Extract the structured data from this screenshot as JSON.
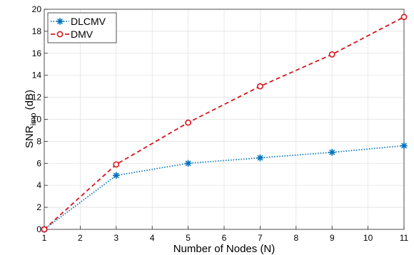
{
  "chart_data": {
    "type": "line",
    "xlabel": "Number of Nodes (N)",
    "ylabel": {
      "main": "SNR",
      "sub": "imp",
      "unit": " (dB)"
    },
    "xlim": [
      1,
      11
    ],
    "ylim": [
      0,
      20
    ],
    "xticks": [
      1,
      2,
      3,
      4,
      5,
      6,
      7,
      8,
      9,
      10,
      11
    ],
    "yticks": [
      0,
      2,
      4,
      6,
      8,
      10,
      12,
      14,
      16,
      18,
      20
    ],
    "grid": true,
    "legend_position": "top-left",
    "series": [
      {
        "name": "DLCMV",
        "color": "#0072BD",
        "line_style": "dotted",
        "marker": "asterisk",
        "x": [
          1,
          3,
          5,
          7,
          9,
          11
        ],
        "y": [
          0,
          4.9,
          6.0,
          6.5,
          7.0,
          7.6
        ]
      },
      {
        "name": "DMV",
        "color": "#D9141B",
        "line_style": "dashed",
        "marker": "circle",
        "x": [
          1,
          3,
          5,
          7,
          9,
          11
        ],
        "y": [
          0,
          5.9,
          9.7,
          13.0,
          15.9,
          19.3
        ]
      }
    ]
  }
}
